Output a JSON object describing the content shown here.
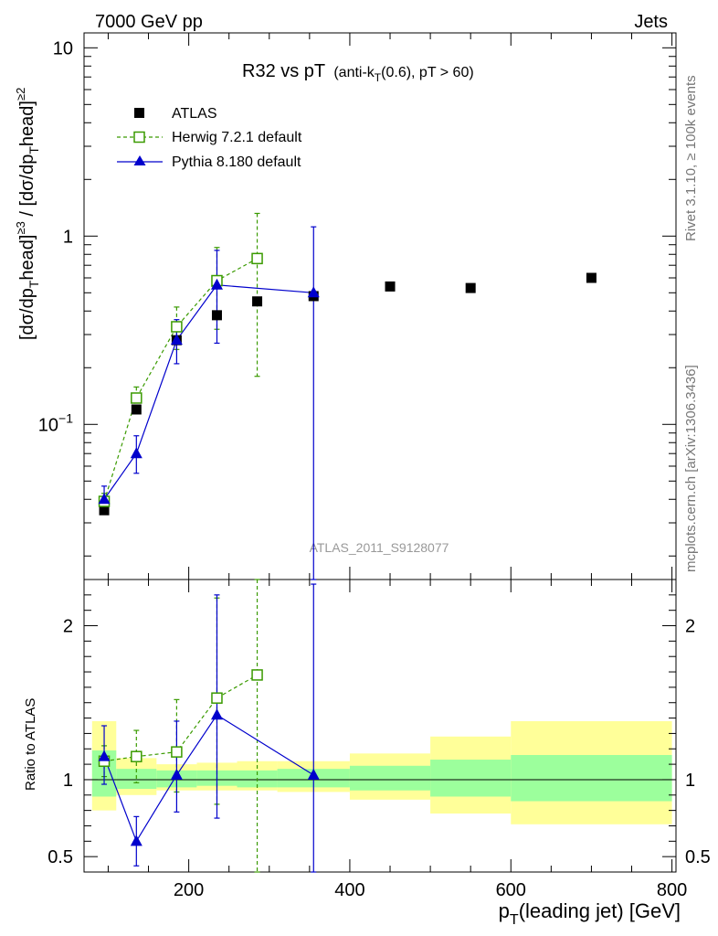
{
  "header": {
    "left": "7000 GeV pp",
    "right": "Jets"
  },
  "side_labels": {
    "rivet": "Rivet 3.1.10, ≥ 100k events",
    "mcplots": "mcplots.cern.ch [arXiv:1306.3436]"
  },
  "watermark": "ATLAS_2011_S9128077",
  "chart_data": {
    "type": "scatter",
    "title": "R32 vs pT",
    "title_sub": "(anti-k",
    "title_sub_idx": "T",
    "title_sub_end": "(0.6), pT > 60)",
    "main": {
      "ylabel": {
        "p1": "[dσ/dp",
        "s1": "T",
        "p2": "ead]",
        "e1": "≥3",
        "p3": " / [dσ/dp",
        "s2": "T",
        "p4": "ead]",
        "e2": "≥2"
      },
      "yscale": "log",
      "ylim": [
        0.015,
        12
      ],
      "yticks": [
        {
          "v": 0.1,
          "base": "10",
          "exp": "−1"
        },
        {
          "v": 1,
          "label": "1"
        },
        {
          "v": 10,
          "label": "10"
        }
      ]
    },
    "ratio": {
      "ylabel": "Ratio to ATLAS",
      "ylim": [
        0.4,
        2.3
      ],
      "yticks": [
        {
          "v": 0.5,
          "label": "0.5"
        },
        {
          "v": 1,
          "label": "1"
        },
        {
          "v": 2,
          "label": "2"
        }
      ]
    },
    "xlabel": {
      "p1": "p",
      "sub": "T",
      "p2": "(leading jet) [GeV]"
    },
    "xlim": [
      70,
      805
    ],
    "xticks": [
      {
        "v": 200,
        "label": "200"
      },
      {
        "v": 400,
        "label": "400"
      },
      {
        "v": 600,
        "label": "600"
      },
      {
        "v": 800,
        "label": "800"
      }
    ],
    "legend": {
      "position": "top-left",
      "entries": [
        {
          "label": "ATLAS"
        },
        {
          "label": "Herwig 7.2.1 default"
        },
        {
          "label": "Pythia 8.180 default"
        }
      ]
    },
    "colors": {
      "data": "#000000",
      "herwig": "#3a9a00",
      "pythia": "#0000cc",
      "band_inner": "#9cff9c",
      "band_outer": "#ffff99"
    },
    "series": [
      {
        "name": "ATLAS",
        "marker": "square-filled",
        "points": [
          {
            "x": 95,
            "y": 0.035,
            "ylo": 0.033,
            "yhi": 0.037
          },
          {
            "x": 135,
            "y": 0.12,
            "ylo": 0.115,
            "yhi": 0.125
          },
          {
            "x": 185,
            "y": 0.28,
            "ylo": 0.27,
            "yhi": 0.29
          },
          {
            "x": 235,
            "y": 0.38,
            "ylo": 0.37,
            "yhi": 0.39
          },
          {
            "x": 285,
            "y": 0.45,
            "ylo": 0.44,
            "yhi": 0.46
          },
          {
            "x": 355,
            "y": 0.48,
            "ylo": 0.47,
            "yhi": 0.49
          },
          {
            "x": 450,
            "y": 0.54,
            "ylo": 0.53,
            "yhi": 0.55
          },
          {
            "x": 550,
            "y": 0.53,
            "ylo": 0.52,
            "yhi": 0.54
          },
          {
            "x": 700,
            "y": 0.6,
            "ylo": 0.59,
            "yhi": 0.61
          }
        ]
      },
      {
        "name": "Herwig 7.2.1 default",
        "marker": "square-open",
        "line": "dashed",
        "points": [
          {
            "x": 95,
            "y": 0.039,
            "ylo": 0.035,
            "yhi": 0.043
          },
          {
            "x": 135,
            "y": 0.138,
            "ylo": 0.12,
            "yhi": 0.158
          },
          {
            "x": 185,
            "y": 0.33,
            "ylo": 0.25,
            "yhi": 0.42
          },
          {
            "x": 235,
            "y": 0.58,
            "ylo": 0.32,
            "yhi": 0.87
          },
          {
            "x": 285,
            "y": 0.76,
            "ylo": 0.18,
            "yhi": 1.32
          }
        ]
      },
      {
        "name": "Pythia 8.180 default",
        "marker": "triangle-up",
        "line": "solid",
        "points": [
          {
            "x": 95,
            "y": 0.04,
            "ylo": 0.034,
            "yhi": 0.047
          },
          {
            "x": 135,
            "y": 0.07,
            "ylo": 0.055,
            "yhi": 0.087
          },
          {
            "x": 185,
            "y": 0.28,
            "ylo": 0.21,
            "yhi": 0.36
          },
          {
            "x": 235,
            "y": 0.55,
            "ylo": 0.27,
            "yhi": 0.84
          },
          {
            "x": 355,
            "y": 0.5,
            "ylo": 0.01,
            "yhi": 1.12
          }
        ]
      }
    ],
    "ratio_series": [
      {
        "name": "Herwig 7.2.1 default",
        "points": [
          {
            "x": 95,
            "y": 1.12,
            "ylo": 1.02,
            "yhi": 1.22
          },
          {
            "x": 135,
            "y": 1.15,
            "ylo": 0.98,
            "yhi": 1.32
          },
          {
            "x": 185,
            "y": 1.18,
            "ylo": 0.92,
            "yhi": 1.52
          },
          {
            "x": 235,
            "y": 1.53,
            "ylo": 0.84,
            "yhi": 2.18
          },
          {
            "x": 285,
            "y": 1.68,
            "ylo": 0.35,
            "yhi": 2.9
          }
        ]
      },
      {
        "name": "Pythia 8.180 default",
        "points": [
          {
            "x": 95,
            "y": 1.15,
            "ylo": 0.97,
            "yhi": 1.35
          },
          {
            "x": 135,
            "y": 0.6,
            "ylo": 0.44,
            "yhi": 0.76
          },
          {
            "x": 185,
            "y": 1.03,
            "ylo": 0.79,
            "yhi": 1.38
          },
          {
            "x": 235,
            "y": 1.42,
            "ylo": 0.75,
            "yhi": 2.2
          },
          {
            "x": 355,
            "y": 1.03,
            "ylo": 0.02,
            "yhi": 2.27
          }
        ]
      }
    ],
    "bands": [
      {
        "x0": 80,
        "x1": 110,
        "inner": [
          0.89,
          1.19
        ],
        "outer": [
          0.8,
          1.38
        ]
      },
      {
        "x0": 110,
        "x1": 160,
        "inner": [
          0.94,
          1.07
        ],
        "outer": [
          0.9,
          1.14
        ]
      },
      {
        "x0": 160,
        "x1": 210,
        "inner": [
          0.95,
          1.06
        ],
        "outer": [
          0.93,
          1.1
        ]
      },
      {
        "x0": 210,
        "x1": 260,
        "inner": [
          0.96,
          1.06
        ],
        "outer": [
          0.93,
          1.11
        ]
      },
      {
        "x0": 260,
        "x1": 310,
        "inner": [
          0.95,
          1.06
        ],
        "outer": [
          0.93,
          1.12
        ]
      },
      {
        "x0": 310,
        "x1": 400,
        "inner": [
          0.95,
          1.07
        ],
        "outer": [
          0.92,
          1.12
        ]
      },
      {
        "x0": 400,
        "x1": 500,
        "inner": [
          0.93,
          1.09
        ],
        "outer": [
          0.87,
          1.17
        ]
      },
      {
        "x0": 500,
        "x1": 600,
        "inner": [
          0.89,
          1.13
        ],
        "outer": [
          0.78,
          1.28
        ]
      },
      {
        "x0": 600,
        "x1": 800,
        "inner": [
          0.86,
          1.16
        ],
        "outer": [
          0.71,
          1.38
        ]
      }
    ]
  }
}
